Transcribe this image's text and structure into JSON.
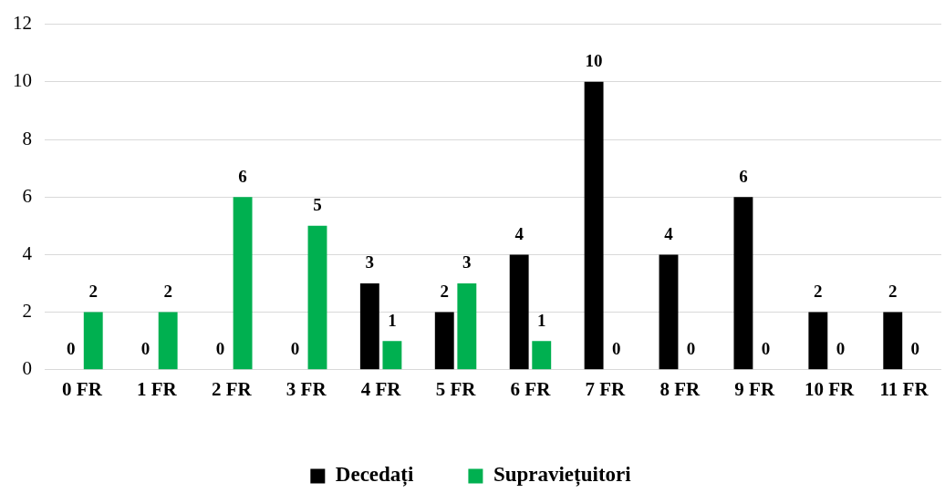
{
  "chart_data": {
    "type": "bar",
    "categories": [
      "0 FR",
      "1 FR",
      "2 FR",
      "3 FR",
      "4 FR",
      "5 FR",
      "6 FR",
      "7 FR",
      "8 FR",
      "9 FR",
      "10 FR",
      "11 FR"
    ],
    "series": [
      {
        "name": "Decedați",
        "color": "#000000",
        "values": [
          0,
          0,
          0,
          0,
          3,
          2,
          4,
          10,
          4,
          6,
          2,
          2
        ]
      },
      {
        "name": "Supraviețuitori",
        "color": "#00b050",
        "values": [
          2,
          2,
          6,
          5,
          1,
          3,
          1,
          0,
          0,
          0,
          0,
          0
        ]
      }
    ],
    "ylim": [
      0,
      12
    ],
    "yticks": [
      0,
      2,
      4,
      6,
      8,
      10,
      12
    ],
    "grid": "y",
    "legend": "bottom",
    "data_labels": true
  }
}
